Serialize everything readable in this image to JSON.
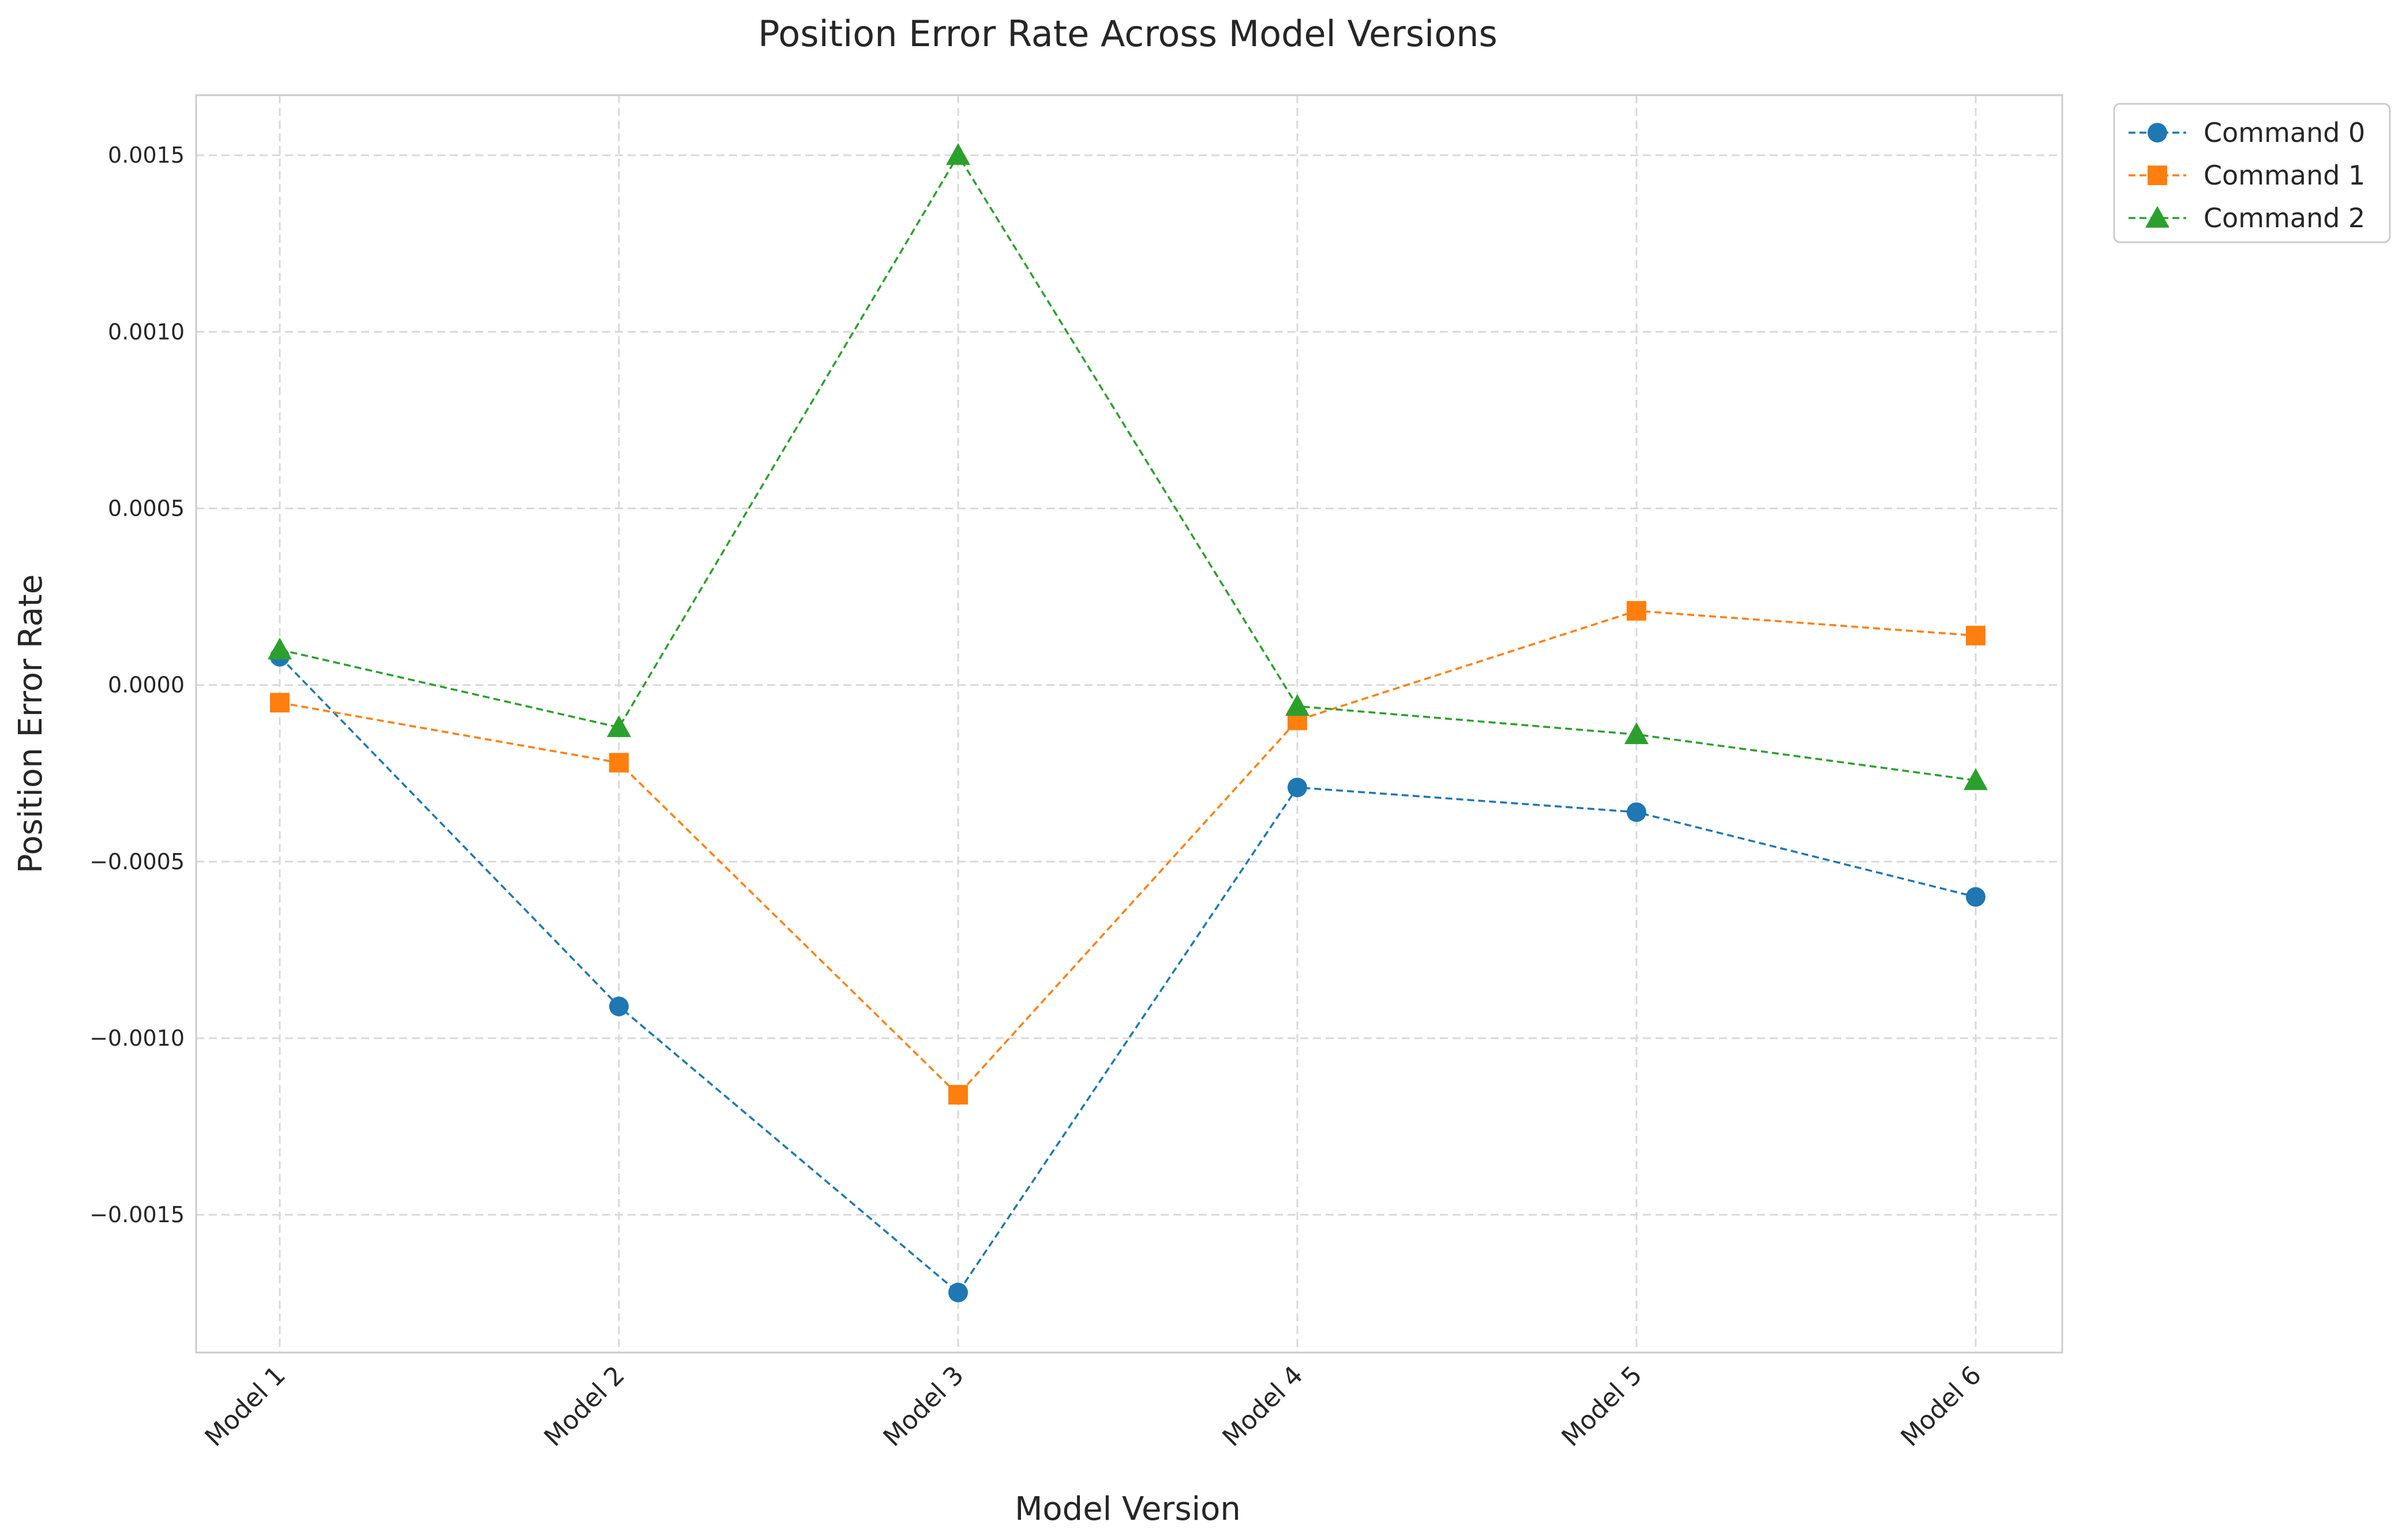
{
  "chart_data": {
    "type": "line",
    "title": "Position Error Rate Across Model Versions",
    "xlabel": "Model Version",
    "ylabel": "Position Error Rate",
    "categories": [
      "Model 1",
      "Model 2",
      "Model 3",
      "Model 4",
      "Model 5",
      "Model 6"
    ],
    "ylim": [
      -0.00189,
      0.00167
    ],
    "yticks": [
      -0.0015,
      -0.001,
      -0.0005,
      0.0,
      0.0005,
      0.001,
      0.0015
    ],
    "ytick_labels": [
      "−0.0015",
      "−0.0010",
      "−0.0005",
      "0.0000",
      "0.0005",
      "0.0010",
      "0.0015"
    ],
    "grid": true,
    "legend_position": "outside top-right",
    "series": [
      {
        "name": "Command 0",
        "color": "#1f77b4",
        "marker": "circle",
        "values": [
          8e-05,
          -0.00091,
          -0.00172,
          -0.00029,
          -0.00036,
          -0.0006
        ]
      },
      {
        "name": "Command 1",
        "color": "#ff7f0e",
        "marker": "square",
        "values": [
          -5e-05,
          -0.00022,
          -0.00116,
          -0.0001,
          0.00021,
          0.00014
        ]
      },
      {
        "name": "Command 2",
        "color": "#2ca02c",
        "marker": "triangle",
        "values": [
          0.0001,
          -0.00012,
          0.0015,
          -6e-05,
          -0.00014,
          -0.00027
        ]
      }
    ]
  }
}
